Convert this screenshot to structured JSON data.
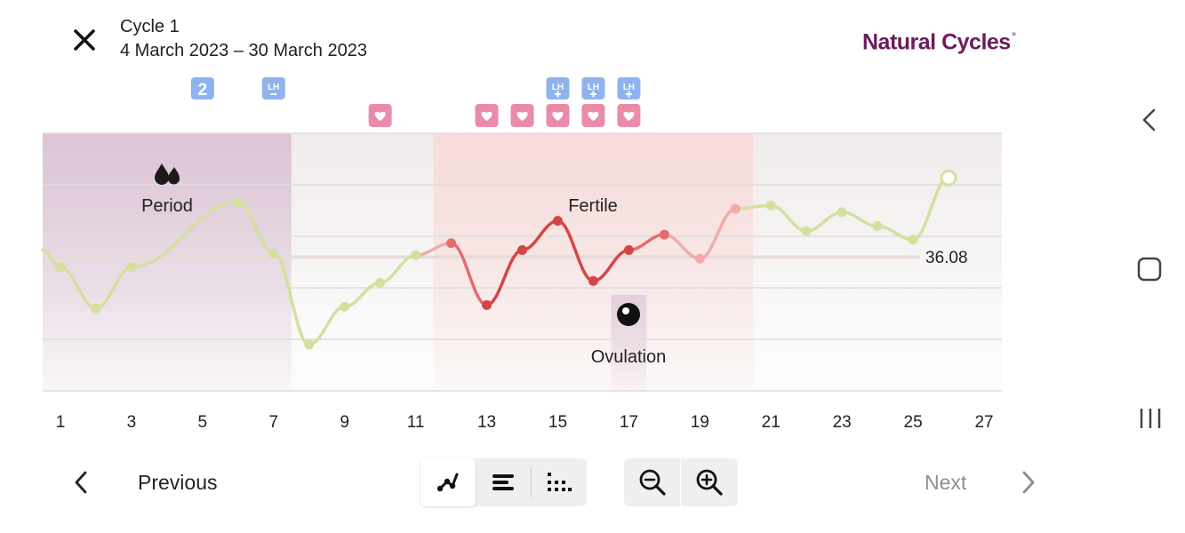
{
  "header": {
    "title": "Cycle 1",
    "dates": "4 March 2023 – 30 March 2023",
    "brand": "Natural Cycles",
    "brand_mark": "°",
    "close_icon": "close-icon"
  },
  "system_nav": {
    "icons": [
      "back-icon",
      "home-icon",
      "recents-icon"
    ]
  },
  "chart_data": {
    "type": "line",
    "x_unit": "CD",
    "x_ticks": [
      1,
      3,
      5,
      7,
      9,
      11,
      13,
      15,
      17,
      19,
      21,
      23,
      25,
      27
    ],
    "x_range": [
      0.5,
      27.5
    ],
    "y_ticks": [
      36.8,
      36.5,
      36.2,
      35.9,
      35.6,
      35.3
    ],
    "y_range": [
      35.3,
      36.8
    ],
    "grid": true,
    "cover_line": {
      "value": 36.08,
      "label": "36.08"
    },
    "temperatures": [
      {
        "day": 1,
        "value": 36.02
      },
      {
        "day": 2,
        "value": 35.78
      },
      {
        "day": 3,
        "value": 36.02
      },
      {
        "day": 6,
        "value": 36.4
      },
      {
        "day": 7,
        "value": 36.1
      },
      {
        "day": 8,
        "value": 35.57
      },
      {
        "day": 9,
        "value": 35.79
      },
      {
        "day": 10,
        "value": 35.93
      },
      {
        "day": 11,
        "value": 36.09
      },
      {
        "day": 12,
        "value": 36.16
      },
      {
        "day": 13,
        "value": 35.8
      },
      {
        "day": 14,
        "value": 36.12
      },
      {
        "day": 15,
        "value": 36.29
      },
      {
        "day": 16,
        "value": 35.94
      },
      {
        "day": 17,
        "value": 36.12
      },
      {
        "day": 18,
        "value": 36.21
      },
      {
        "day": 19,
        "value": 36.07
      },
      {
        "day": 20,
        "value": 36.36
      },
      {
        "day": 21,
        "value": 36.38
      },
      {
        "day": 22,
        "value": 36.23
      },
      {
        "day": 23,
        "value": 36.34
      },
      {
        "day": 24,
        "value": 36.26
      },
      {
        "day": 25,
        "value": 36.18
      },
      {
        "day": 26,
        "value": 36.54,
        "open": true
      }
    ],
    "regions": [
      {
        "label": "Period",
        "from": 0.5,
        "to": 7.5,
        "icon": "drops-icon"
      },
      {
        "label": "Fertile",
        "from": 11.5,
        "to": 20.5
      },
      {
        "label": "Ovulation",
        "from": 16.5,
        "to": 17.5,
        "icon": "ovulation-icon"
      }
    ],
    "markers": {
      "count_badges": [
        {
          "day": 5,
          "text": "2"
        }
      ],
      "lh_negative": [
        {
          "day": 7,
          "text": "LH"
        }
      ],
      "lh_positive": [
        {
          "day": 15,
          "text": "LH"
        },
        {
          "day": 16,
          "text": "LH"
        },
        {
          "day": 17,
          "text": "LH"
        }
      ],
      "hearts": [
        10,
        13,
        14,
        15,
        16,
        17
      ]
    },
    "colors": {
      "normal_line": "#d4e09e",
      "fertile_line": "#e46c6c",
      "fertile_dark": "#d64545",
      "fertile_light": "#f2aaaa",
      "period_bg": "#dcc4d6",
      "fertile_bg": "#f8dcdb",
      "ovulation_bg": "#e3cfdd",
      "badge_blue": "#8fb3ee",
      "heart_pink": "#ea8ca9",
      "cover_line": "#e6dbd8"
    }
  },
  "toolbar": {
    "previous": "Previous",
    "next": "Next",
    "view_buttons": [
      "line-view-icon",
      "bar-view-icon",
      "dots-view-icon"
    ],
    "zoom_buttons": [
      "zoom-out-icon",
      "zoom-in-icon"
    ]
  }
}
